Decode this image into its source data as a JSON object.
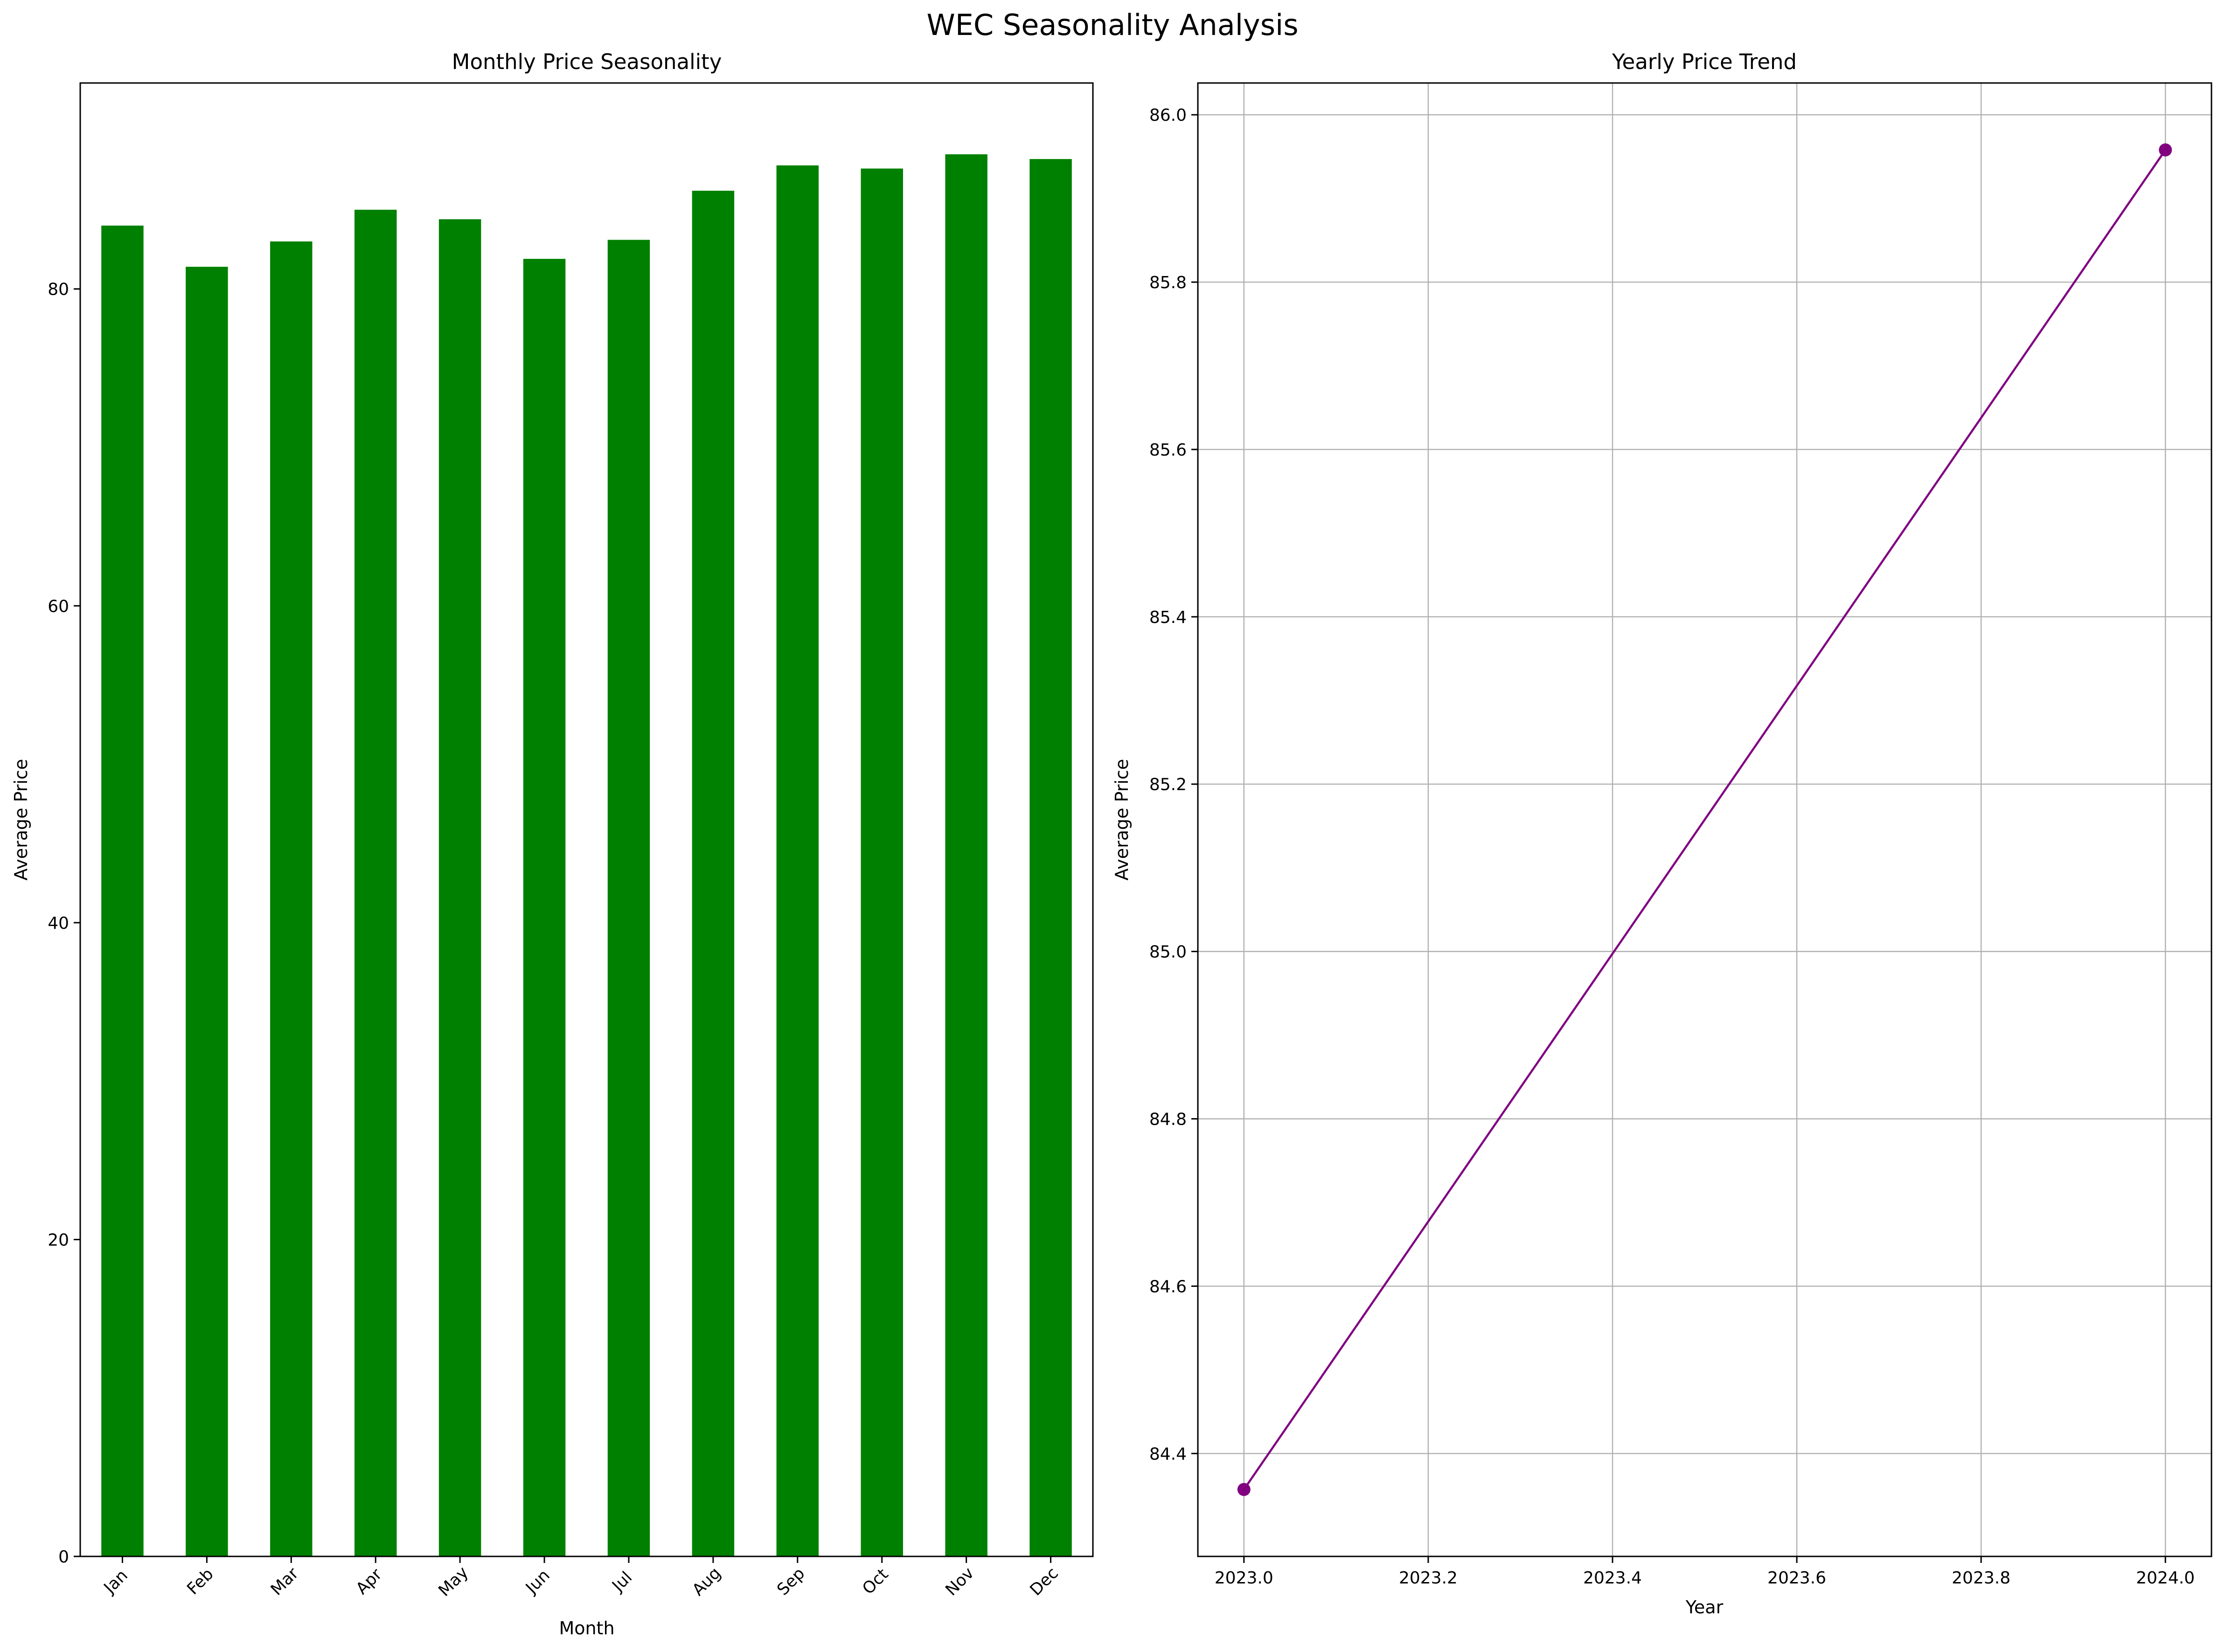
{
  "figure": {
    "suptitle": "WEC Seasonality Analysis"
  },
  "chart_data": [
    {
      "type": "bar",
      "title": "Monthly Price Seasonality",
      "xlabel": "Month",
      "ylabel": "Average Price",
      "categories": [
        "Jan",
        "Feb",
        "Mar",
        "Apr",
        "May",
        "Jun",
        "Jul",
        "Aug",
        "Sep",
        "Oct",
        "Nov",
        "Dec"
      ],
      "values": [
        84.0,
        81.4,
        83.0,
        85.0,
        84.4,
        81.9,
        83.1,
        86.2,
        87.8,
        87.6,
        88.5,
        88.2
      ],
      "ylim": [
        0,
        93
      ],
      "yticks": [
        0,
        20,
        40,
        60,
        80
      ],
      "bar_color": "#008000",
      "grid": false
    },
    {
      "type": "line",
      "title": "Yearly Price Trend",
      "xlabel": "Year",
      "ylabel": "Average Price",
      "x": [
        2023.0,
        2024.0
      ],
      "y": [
        84.357,
        85.958
      ],
      "xlim": [
        2022.95,
        2024.05
      ],
      "ylim": [
        84.277,
        86.038
      ],
      "xticks": [
        "2023.0",
        "2023.2",
        "2023.4",
        "2023.6",
        "2023.8",
        "2024.0"
      ],
      "yticks": [
        "84.4",
        "84.6",
        "84.8",
        "85.0",
        "85.2",
        "85.4",
        "85.6",
        "85.8",
        "86.0"
      ],
      "line_color": "#800080",
      "marker": "circle",
      "grid": true
    }
  ]
}
